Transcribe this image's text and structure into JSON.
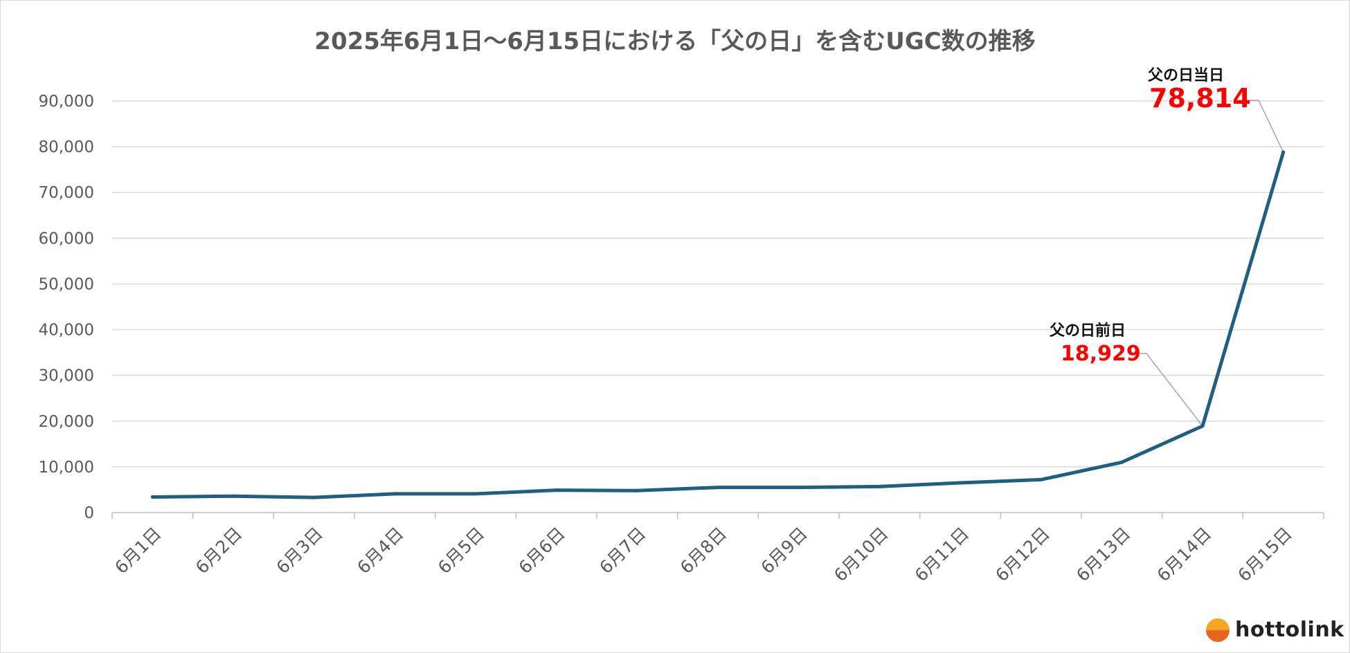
{
  "title": "2025年6月1日～6月15日における「父の日」を含むUGC数の推移",
  "chart_data": {
    "type": "line",
    "title": "2025年6月1日～6月15日における「父の日」を含むUGC数の推移",
    "xlabel": "",
    "ylabel": "",
    "categories": [
      "6月1日",
      "6月2日",
      "6月3日",
      "6月4日",
      "6月5日",
      "6月6日",
      "6月7日",
      "6月8日",
      "6月9日",
      "6月10日",
      "6月11日",
      "6月12日",
      "6月13日",
      "6月14日",
      "6月15日"
    ],
    "series": [
      {
        "values": [
          3400,
          3600,
          3300,
          4100,
          4100,
          4900,
          4800,
          5500,
          5500,
          5700,
          6500,
          7200,
          11000,
          18929,
          78814
        ]
      }
    ],
    "yticks": [
      "0",
      "10,000",
      "20,000",
      "30,000",
      "40,000",
      "50,000",
      "60,000",
      "70,000",
      "80,000",
      "90,000"
    ],
    "ylim": [
      0,
      90000
    ],
    "grid": true,
    "line_color": "#1f5f7f",
    "annotations": [
      {
        "label": "父の日前日",
        "value": "18,929",
        "index": 13
      },
      {
        "label": "父の日当日",
        "value": "78,814",
        "index": 14
      }
    ]
  },
  "logo": {
    "text": "hottolink"
  }
}
